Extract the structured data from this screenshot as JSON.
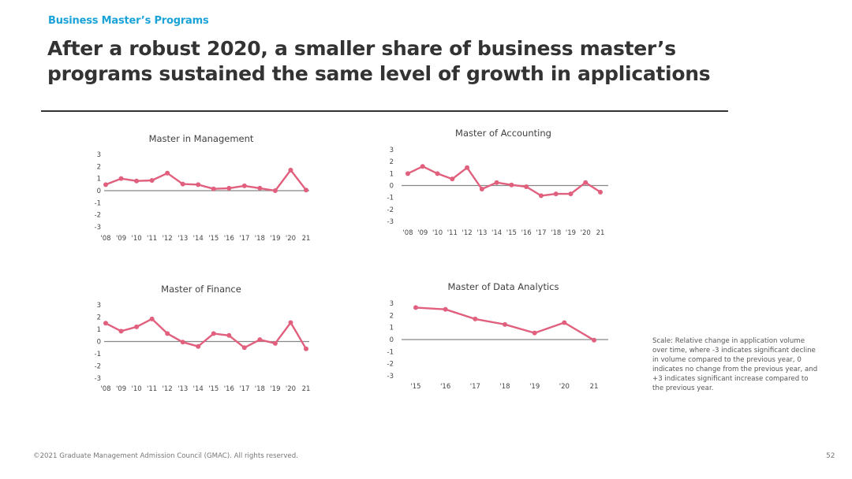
{
  "header": {
    "kicker": "Business Master’s Programs",
    "title_line1": "After a robust 2020, a smaller share of business master’s",
    "title_line2": "programs sustained the same level of growth in applications"
  },
  "colors": {
    "kicker": "#1aa3d8",
    "title": "#333333",
    "series_line": "#e0607e",
    "zero_line": "#888888"
  },
  "chart_data": [
    {
      "type": "line",
      "title": "Master in Management",
      "categories": [
        "'08",
        "'09",
        "'10",
        "'11",
        "'12",
        "'13",
        "'14",
        "'15",
        "'16",
        "'17",
        "'18",
        "'19",
        "'20",
        "21"
      ],
      "values": [
        0.5,
        1.0,
        0.8,
        0.85,
        1.45,
        0.55,
        0.5,
        0.15,
        0.2,
        0.4,
        0.2,
        0.0,
        1.7,
        0.05
      ],
      "ylim": [
        -3,
        3
      ],
      "yticks": [
        "3",
        "2",
        "1",
        "0",
        "-1",
        "-2",
        "-3"
      ],
      "xlabel": "",
      "ylabel": "",
      "grid": false
    },
    {
      "type": "line",
      "title": "Master of Accounting",
      "categories": [
        "'08",
        "'09",
        "'10",
        "'11",
        "'12",
        "'13",
        "'14",
        "'15",
        "'16",
        "'17",
        "'18",
        "'19",
        "'20",
        "21"
      ],
      "values": [
        1.0,
        1.6,
        1.0,
        0.55,
        1.5,
        -0.3,
        0.25,
        0.05,
        -0.1,
        -0.85,
        -0.7,
        -0.7,
        0.25,
        -0.55
      ],
      "ylim": [
        -3,
        3
      ],
      "yticks": [
        "3",
        "2",
        "1",
        "0",
        "-1",
        "-2",
        "-3"
      ],
      "xlabel": "",
      "ylabel": "",
      "grid": false
    },
    {
      "type": "line",
      "title": "Master of Finance",
      "categories": [
        "'08",
        "'09",
        "'10",
        "'11",
        "'12",
        "'13",
        "'14",
        "'15",
        "'16",
        "'17",
        "'18",
        "'19",
        "'20",
        "21"
      ],
      "values": [
        1.5,
        0.85,
        1.2,
        1.85,
        0.65,
        -0.05,
        -0.4,
        0.65,
        0.5,
        -0.5,
        0.15,
        -0.15,
        1.55,
        -0.6
      ],
      "ylim": [
        -3,
        3
      ],
      "yticks": [
        "3",
        "2",
        "1",
        "0",
        "-1",
        "-2",
        "-3"
      ],
      "xlabel": "",
      "ylabel": "",
      "grid": false
    },
    {
      "type": "line",
      "title": "Master of Data Analytics",
      "categories": [
        "'15",
        "'16",
        "'17",
        "'18",
        "'19",
        "'20",
        "21"
      ],
      "values": [
        2.65,
        2.5,
        1.7,
        1.25,
        0.55,
        1.4,
        -0.05
      ],
      "ylim": [
        -3,
        3
      ],
      "yticks": [
        "3",
        "2",
        "1",
        "0",
        "-1",
        "-2",
        "-3"
      ],
      "xlabel": "",
      "ylabel": "",
      "grid": false
    }
  ],
  "scale_note": "Scale: Relative change in application volume over time, where -3 indicates significant decline in volume compared to the previous year, 0 indicates no change from the previous year, and +3 indicates significant increase compared to the previous year.",
  "footer": {
    "copyright": "©2021 Graduate Management Admission Council (GMAC). All rights reserved.",
    "page_number": "52"
  }
}
